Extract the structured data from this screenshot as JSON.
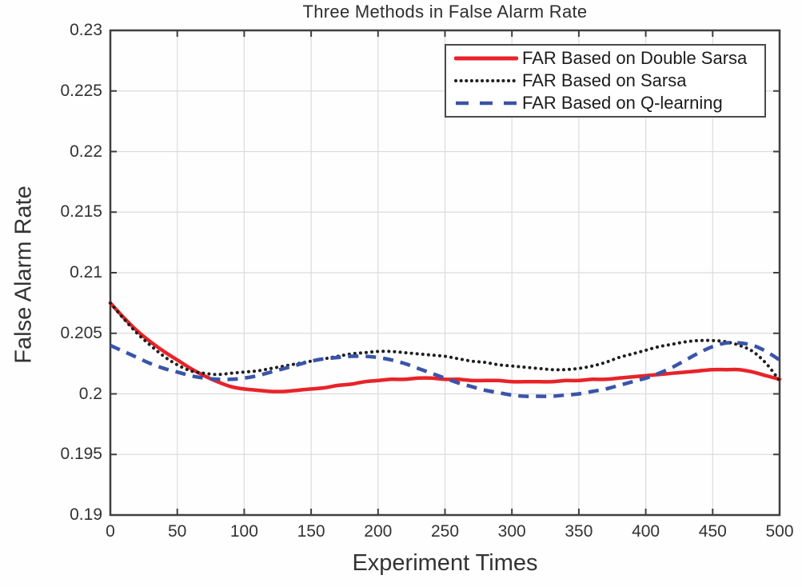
{
  "chart_data": {
    "type": "line",
    "title": "Three Methods in False Alarm Rate",
    "xlabel": "Experiment Times",
    "ylabel": "False Alarm Rate",
    "xlim": [
      0,
      500
    ],
    "ylim": [
      0.19,
      0.23
    ],
    "x_ticks": [
      "0",
      "50",
      "100",
      "150",
      "200",
      "250",
      "300",
      "350",
      "400",
      "450",
      "500"
    ],
    "y_ticks": [
      "0.19",
      "0.195",
      "0.2",
      "0.205",
      "0.21",
      "0.215",
      "0.22",
      "0.225",
      "0.23"
    ],
    "grid": true,
    "legend_position": "upper right inside",
    "axis_color": "#3f3f3f",
    "grid_color": "#dcdcdc",
    "x": [
      0,
      10,
      20,
      30,
      40,
      50,
      60,
      70,
      80,
      90,
      100,
      110,
      120,
      130,
      140,
      150,
      160,
      170,
      180,
      190,
      200,
      210,
      220,
      230,
      240,
      250,
      260,
      270,
      280,
      290,
      300,
      310,
      320,
      330,
      340,
      350,
      360,
      370,
      380,
      390,
      400,
      410,
      420,
      430,
      440,
      450,
      460,
      470,
      480,
      490,
      500
    ],
    "series": [
      {
        "name": "FAR Based on Double Sarsa",
        "color": "#e82329",
        "line_style": "solid",
        "values": [
          0.2075,
          0.2063,
          0.2052,
          0.2043,
          0.2035,
          0.2028,
          0.2021,
          0.2015,
          0.201,
          0.2006,
          0.2004,
          0.2003,
          0.2002,
          0.2002,
          0.2003,
          0.2004,
          0.2005,
          0.2007,
          0.2008,
          0.201,
          0.2011,
          0.2012,
          0.2012,
          0.2013,
          0.2013,
          0.2012,
          0.2012,
          0.2011,
          0.2011,
          0.2011,
          0.201,
          0.201,
          0.201,
          0.201,
          0.2011,
          0.2011,
          0.2012,
          0.2012,
          0.2013,
          0.2014,
          0.2015,
          0.2016,
          0.2017,
          0.2018,
          0.2019,
          0.202,
          0.202,
          0.202,
          0.2018,
          0.2015,
          0.2012
        ]
      },
      {
        "name": "FAR Based on Sarsa",
        "color": "#1f1f1f",
        "line_style": "dotted",
        "values": [
          0.2075,
          0.2062,
          0.205,
          0.204,
          0.2031,
          0.2024,
          0.2019,
          0.2017,
          0.2016,
          0.2017,
          0.2018,
          0.2019,
          0.2021,
          0.2023,
          0.2025,
          0.2027,
          0.2029,
          0.2031,
          0.2033,
          0.2034,
          0.2035,
          0.2035,
          0.2034,
          0.2033,
          0.2032,
          0.2031,
          0.2029,
          0.2027,
          0.2026,
          0.2024,
          0.2023,
          0.2022,
          0.2021,
          0.202,
          0.202,
          0.2021,
          0.2023,
          0.2026,
          0.203,
          0.2033,
          0.2036,
          0.2039,
          0.2041,
          0.2043,
          0.2044,
          0.2044,
          0.2043,
          0.204,
          0.2035,
          0.2025,
          0.2011
        ]
      },
      {
        "name": "FAR Based on Q-learning",
        "color": "#3a54a8",
        "line_style": "dashed",
        "values": [
          0.204,
          0.2035,
          0.203,
          0.2025,
          0.2021,
          0.2018,
          0.2015,
          0.2013,
          0.2012,
          0.2012,
          0.2013,
          0.2015,
          0.2018,
          0.2021,
          0.2024,
          0.2027,
          0.2029,
          0.203,
          0.2031,
          0.2031,
          0.203,
          0.2028,
          0.2025,
          0.2021,
          0.2017,
          0.2013,
          0.2009,
          0.2006,
          0.2003,
          0.2001,
          0.1999,
          0.1998,
          0.1998,
          0.1998,
          0.1999,
          0.2,
          0.2002,
          0.2004,
          0.2007,
          0.201,
          0.2013,
          0.2017,
          0.2022,
          0.2028,
          0.2034,
          0.2039,
          0.2042,
          0.2042,
          0.204,
          0.2035,
          0.2028
        ]
      }
    ]
  }
}
